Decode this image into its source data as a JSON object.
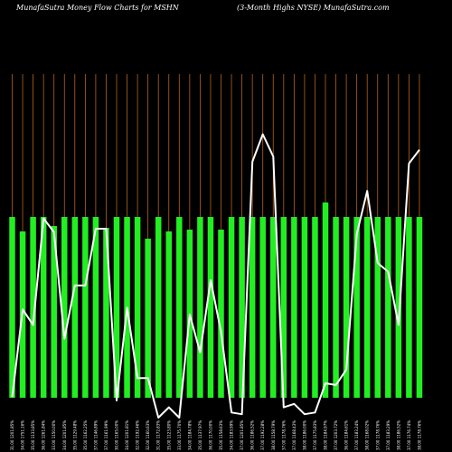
{
  "header": {
    "title": "MunafaSutra  Money Flow  Charts for MSHN",
    "subtitle": "(3-Month Highs NYSE) MunafaSutra.com"
  },
  "chart_data": {
    "type": "bar",
    "title": "MunafaSutra  Money Flow  Charts for MSHN",
    "categories": [
      "31.00 1201.85%",
      "34.00 1751.16%",
      "35.00 1133.85%",
      "36.00 1261.84%",
      "33.00 1150.00%",
      "34.00 1201.85%",
      "35.00 1129.48%",
      "35.00 1162.25%",
      "37.00 1146.89%",
      "37.00 1161.99%",
      "30.00 1165.00%",
      "34.00 1201.81%",
      "32.00 1192.46%",
      "32.00 1160.63%",
      "31.00 1172.83%",
      "35.00 1123.80%",
      "33.00 1175.70%",
      "34.00 1184.78%",
      "35.00 1137.97%",
      "36.00 1170.00%",
      "35.00 1158.63%",
      "34.00 1183.99%",
      "37.00 1201.85%",
      "36.00 1186.52%",
      "37.00 1192.28%",
      "38.00 1158.79%",
      "37.00 1178.76%",
      "37.00 1168.43%",
      "38.00 1186.00%",
      "37.00 1175.83%",
      "38.00 1184.97%",
      "37.00 1203.72%",
      "36.00 1184.61%",
      "37.00 1183.24%",
      "38.00 1168.02%",
      "37.00 1178.76%",
      "37.00 1183.29%",
      "38.00 1186.52%",
      "37.00 1176.74%",
      "38.00 1178.76%"
    ],
    "series": [
      {
        "type": "bar",
        "color": "#22ee22",
        "values": [
          100,
          92,
          100,
          100,
          95,
          100,
          100,
          100,
          100,
          94,
          100,
          100,
          100,
          88,
          100,
          92,
          100,
          93,
          100,
          100,
          93,
          100,
          100,
          100,
          100,
          100,
          100,
          100,
          100,
          100,
          108,
          100,
          100,
          100,
          100,
          100,
          100,
          100,
          100,
          100
        ]
      },
      {
        "type": "line",
        "color": "#ffffff",
        "values": [
          0.2,
          5.3,
          4.4,
          10.6,
          9.8,
          3.6,
          6.7,
          6.7,
          10.0,
          10.0,
          0.0,
          5.4,
          1.3,
          1.3,
          -1.0,
          -0.4,
          -1.0,
          5.0,
          2.8,
          7.0,
          4.0,
          -0.7,
          -0.8,
          13.9,
          15.5,
          14.2,
          -0.4,
          -0.2,
          -0.8,
          -0.7,
          1.0,
          0.9,
          1.8,
          9.7,
          12.2,
          8.0,
          7.5,
          4.4,
          13.8,
          14.6
        ]
      }
    ],
    "grid": true,
    "legend": "none"
  }
}
